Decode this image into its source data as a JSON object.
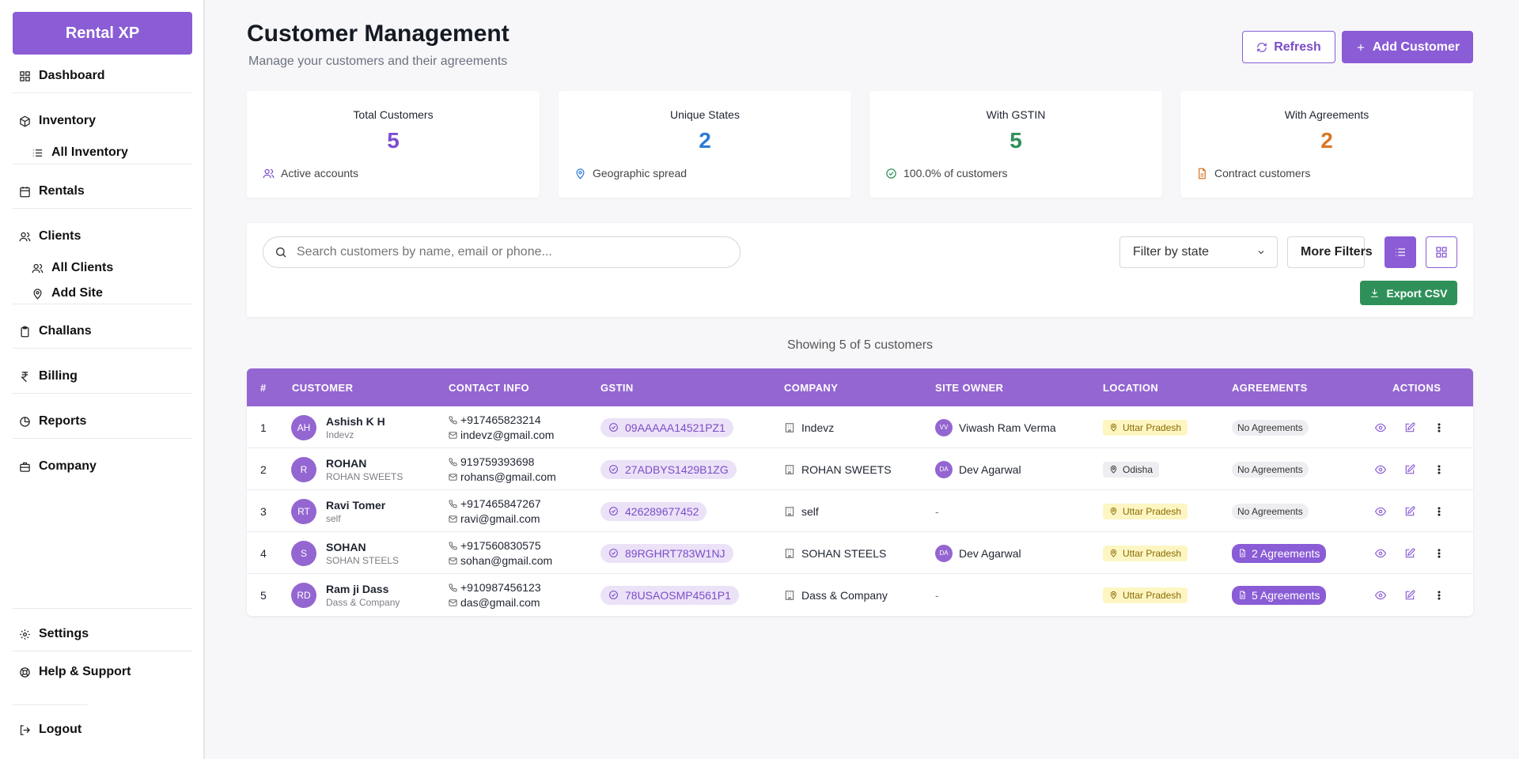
{
  "brand": "Rental XP",
  "sidebar": {
    "dashboard": "Dashboard",
    "inventory": "Inventory",
    "all_inventory": "All Inventory",
    "rentals": "Rentals",
    "clients": "Clients",
    "all_clients": "All Clients",
    "add_site": "Add Site",
    "challans": "Challans",
    "billing": "Billing",
    "reports": "Reports",
    "company": "Company",
    "settings": "Settings",
    "help": "Help & Support",
    "logout": "Logout"
  },
  "header": {
    "title": "Customer Management",
    "subtitle": "Manage your customers and their agreements",
    "refresh_label": "Refresh",
    "add_label": "Add Customer"
  },
  "stats": [
    {
      "label": "Total Customers",
      "value": "5",
      "foot": "Active accounts",
      "color": "#7c4dd1",
      "icon": "users-icon"
    },
    {
      "label": "Unique States",
      "value": "2",
      "foot": "Geographic spread",
      "color": "#2c7bd6",
      "icon": "map-pin-icon"
    },
    {
      "label": "With GSTIN",
      "value": "5",
      "foot": "100.0% of customers",
      "color": "#2f9159",
      "icon": "check-circle-icon"
    },
    {
      "label": "With Agreements",
      "value": "2",
      "foot": "Contract customers",
      "color": "#d97727",
      "icon": "file-icon"
    }
  ],
  "filters": {
    "search_placeholder": "Search customers by name, email or phone...",
    "state_label": "Filter by state",
    "more_filters": "More Filters",
    "export_label": "Export CSV"
  },
  "showing": "Showing 5 of 5 customers",
  "table": {
    "headers": [
      "#",
      "CUSTOMER",
      "CONTACT INFO",
      "GSTIN",
      "COMPANY",
      "SITE OWNER",
      "LOCATION",
      "AGREEMENTS",
      "ACTIONS"
    ],
    "rows": [
      {
        "idx": "1",
        "initials": "AH",
        "name": "Ashish K H",
        "company_sub": "Indevz",
        "phone": "+917465823214",
        "email": "indevz@gmail.com",
        "gstin": "09AAAAA14521PZ1",
        "company": "Indevz",
        "owner_initials": "VV",
        "owner": "Viwash Ram Verma",
        "location": "Uttar Pradesh",
        "agreements": "No Agreements"
      },
      {
        "idx": "2",
        "initials": "R",
        "name": "ROHAN",
        "company_sub": "ROHAN SWEETS",
        "phone": "919759393698",
        "email": "rohans@gmail.com",
        "gstin": "27ADBYS1429B1ZG",
        "company": "ROHAN SWEETS",
        "owner_initials": "DA",
        "owner": "Dev Agarwal",
        "location": "Odisha",
        "agreements": "No Agreements"
      },
      {
        "idx": "3",
        "initials": "RT",
        "name": "Ravi Tomer",
        "company_sub": "self",
        "phone": "+917465847267",
        "email": "ravi@gmail.com",
        "gstin": "426289677452",
        "company": "self",
        "owner_initials": "",
        "owner": "-",
        "location": "Uttar Pradesh",
        "agreements": "No Agreements"
      },
      {
        "idx": "4",
        "initials": "S",
        "name": "SOHAN",
        "company_sub": "SOHAN STEELS",
        "phone": "+917560830575",
        "email": "sohan@gmail.com",
        "gstin": "89RGHRT783W1NJ",
        "company": "SOHAN STEELS",
        "owner_initials": "DA",
        "owner": "Dev Agarwal",
        "location": "Uttar Pradesh",
        "agreements": "2 Agreements"
      },
      {
        "idx": "5",
        "initials": "RD",
        "name": "Ram ji Dass",
        "company_sub": "Dass & Company",
        "phone": "+910987456123",
        "email": "das@gmail.com",
        "gstin": "78USAOSMP4561P1",
        "company": "Dass & Company",
        "owner_initials": "",
        "owner": "-",
        "location": "Uttar Pradesh",
        "agreements": "5 Agreements"
      }
    ]
  },
  "colors": {
    "accent": "#8a5cd6",
    "table_header": "#9466d1",
    "export": "#2f9159",
    "up_badge_bg": "#fdf6c3",
    "up_badge_text": "#8a6a00",
    "odisha_badge_bg": "#eeeef2"
  }
}
